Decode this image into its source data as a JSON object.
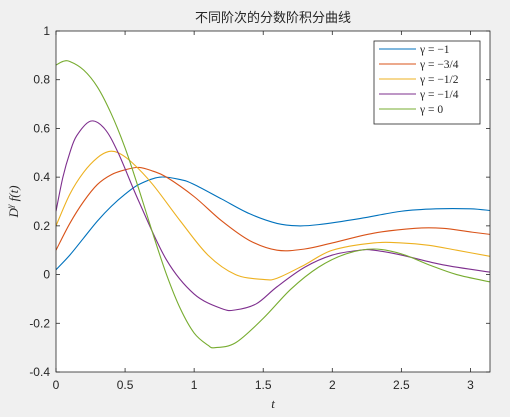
{
  "chart_data": {
    "type": "line",
    "title": "不同阶次的分数阶积分曲线",
    "xlabel": "t",
    "ylabel": "D^γ f(t)",
    "xlim": [
      0,
      3.1416
    ],
    "ylim": [
      -0.4,
      1
    ],
    "xticks": [
      "0",
      "0.5",
      "1",
      "1.5",
      "2",
      "2.5",
      "3"
    ],
    "xtick_values": [
      0,
      0.5,
      1,
      1.5,
      2,
      2.5,
      3
    ],
    "yticks": [
      "-0.4",
      "-0.2",
      "0",
      "0.2",
      "0.4",
      "0.6",
      "0.8",
      "1"
    ],
    "ytick_values": [
      -0.4,
      -0.2,
      0,
      0.2,
      0.4,
      0.6,
      0.8,
      1
    ],
    "grid": false,
    "legend_position": "top-right",
    "series": [
      {
        "name": "γ = −1",
        "color": "#0072BD",
        "x": [
          0,
          0.1,
          0.2,
          0.3,
          0.4,
          0.5,
          0.6,
          0.75,
          0.9,
          1.0,
          1.2,
          1.4,
          1.6,
          1.75,
          1.9,
          2.2,
          2.5,
          2.75,
          3.0,
          3.1416
        ],
        "y": [
          0.02,
          0.08,
          0.15,
          0.22,
          0.28,
          0.33,
          0.37,
          0.4,
          0.39,
          0.37,
          0.31,
          0.25,
          0.21,
          0.2,
          0.205,
          0.23,
          0.26,
          0.27,
          0.27,
          0.263
        ]
      },
      {
        "name": "γ = −3/4",
        "color": "#D95319",
        "x": [
          0,
          0.1,
          0.2,
          0.3,
          0.4,
          0.5,
          0.6,
          0.7,
          0.8,
          1.0,
          1.2,
          1.4,
          1.6,
          1.8,
          2.0,
          2.3,
          2.6,
          2.8,
          3.0,
          3.1416
        ],
        "y": [
          0.1,
          0.21,
          0.3,
          0.37,
          0.41,
          0.43,
          0.44,
          0.425,
          0.4,
          0.32,
          0.22,
          0.14,
          0.1,
          0.105,
          0.13,
          0.17,
          0.19,
          0.19,
          0.175,
          0.165
        ]
      },
      {
        "name": "γ = −1/2",
        "color": "#EDB120",
        "x": [
          0,
          0.1,
          0.2,
          0.3,
          0.38,
          0.45,
          0.55,
          0.7,
          0.9,
          1.1,
          1.3,
          1.5,
          1.6,
          1.8,
          2.0,
          2.3,
          2.5,
          2.7,
          2.9,
          3.1416
        ],
        "y": [
          0.2,
          0.33,
          0.42,
          0.48,
          0.505,
          0.5,
          0.46,
          0.37,
          0.22,
          0.08,
          0.0,
          -0.02,
          -0.015,
          0.04,
          0.1,
          0.13,
          0.13,
          0.12,
          0.1,
          0.075
        ]
      },
      {
        "name": "γ = −1/4",
        "color": "#7E2F8E",
        "x": [
          0,
          0.05,
          0.1,
          0.15,
          0.25,
          0.35,
          0.45,
          0.6,
          0.8,
          1.0,
          1.2,
          1.3,
          1.45,
          1.6,
          1.8,
          2.0,
          2.2,
          2.3,
          2.5,
          2.8,
          3.1416
        ],
        "y": [
          0.26,
          0.4,
          0.5,
          0.57,
          0.63,
          0.6,
          0.5,
          0.3,
          0.06,
          -0.08,
          -0.14,
          -0.145,
          -0.12,
          -0.05,
          0.03,
          0.08,
          0.1,
          0.1,
          0.08,
          0.04,
          0.01
        ]
      },
      {
        "name": "γ = 0",
        "color": "#77AC30",
        "x": [
          0,
          0.05,
          0.1,
          0.2,
          0.3,
          0.4,
          0.5,
          0.6,
          0.7,
          0.8,
          0.9,
          1.0,
          1.1,
          1.15,
          1.3,
          1.5,
          1.7,
          1.9,
          2.1,
          2.3,
          2.5,
          2.7,
          2.9,
          3.1416
        ],
        "y": [
          0.86,
          0.875,
          0.875,
          0.84,
          0.77,
          0.66,
          0.52,
          0.35,
          0.17,
          0.0,
          -0.14,
          -0.24,
          -0.29,
          -0.3,
          -0.28,
          -0.18,
          -0.06,
          0.03,
          0.085,
          0.105,
          0.085,
          0.04,
          0.0,
          -0.03
        ]
      }
    ]
  }
}
